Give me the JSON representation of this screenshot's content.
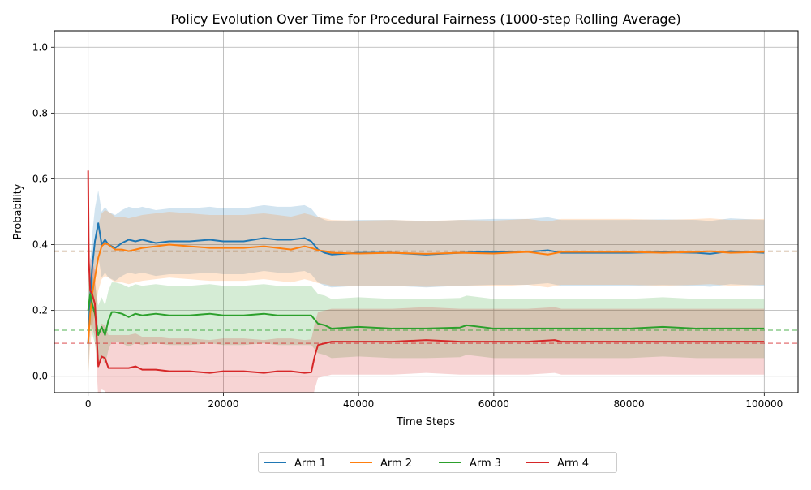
{
  "chart_data": {
    "type": "line",
    "title": "Policy Evolution Over Time for Procedural Fairness (1000-step Rolling Average)",
    "xlabel": "Time Steps",
    "ylabel": "Probability",
    "xlim": [
      -5000,
      105000
    ],
    "ylim": [
      -0.05,
      1.05
    ],
    "x_ticks": [
      0,
      20000,
      40000,
      60000,
      80000,
      100000
    ],
    "x_tick_labels": [
      "0",
      "20000",
      "40000",
      "60000",
      "80000",
      "100000"
    ],
    "y_ticks": [
      0.0,
      0.2,
      0.4,
      0.6,
      0.8,
      1.0
    ],
    "y_tick_labels": [
      "0.0",
      "0.2",
      "0.4",
      "0.6",
      "0.8",
      "1.0"
    ],
    "grid": true,
    "legend_position": "bottom-center",
    "series": [
      {
        "name": "Arm 1",
        "color": "#1f77b4",
        "target": 0.38,
        "band_width": 0.1,
        "x": [
          0,
          300,
          600,
          1000,
          1500,
          2000,
          2500,
          3000,
          4000,
          5000,
          6000,
          7000,
          8000,
          10000,
          12000,
          15000,
          18000,
          20000,
          23000,
          26000,
          28000,
          30000,
          32000,
          33000,
          34000,
          35000,
          36000,
          40000,
          45000,
          50000,
          55000,
          60000,
          65000,
          68000,
          70000,
          75000,
          80000,
          85000,
          90000,
          92000,
          95000,
          100000
        ],
        "values": [
          0.1,
          0.24,
          0.33,
          0.41,
          0.465,
          0.4,
          0.415,
          0.4,
          0.39,
          0.405,
          0.415,
          0.41,
          0.415,
          0.405,
          0.41,
          0.41,
          0.415,
          0.41,
          0.41,
          0.42,
          0.415,
          0.415,
          0.42,
          0.41,
          0.385,
          0.375,
          0.37,
          0.375,
          0.375,
          0.37,
          0.375,
          0.378,
          0.378,
          0.383,
          0.375,
          0.375,
          0.375,
          0.377,
          0.375,
          0.372,
          0.38,
          0.375
        ]
      },
      {
        "name": "Arm 2",
        "color": "#ff7f0e",
        "target": 0.38,
        "band_width": 0.1,
        "x": [
          0,
          300,
          600,
          1000,
          1500,
          2000,
          2500,
          3000,
          4000,
          5000,
          6000,
          7000,
          8000,
          10000,
          12000,
          15000,
          18000,
          20000,
          23000,
          26000,
          28000,
          30000,
          32000,
          33000,
          34000,
          35000,
          36000,
          40000,
          45000,
          50000,
          55000,
          60000,
          65000,
          68000,
          70000,
          75000,
          80000,
          85000,
          90000,
          92000,
          95000,
          100000
        ],
        "values": [
          0.1,
          0.19,
          0.25,
          0.3,
          0.36,
          0.395,
          0.405,
          0.4,
          0.385,
          0.385,
          0.38,
          0.385,
          0.39,
          0.395,
          0.4,
          0.395,
          0.39,
          0.39,
          0.39,
          0.395,
          0.39,
          0.385,
          0.395,
          0.39,
          0.383,
          0.38,
          0.375,
          0.373,
          0.375,
          0.372,
          0.375,
          0.373,
          0.378,
          0.37,
          0.378,
          0.378,
          0.378,
          0.375,
          0.378,
          0.38,
          0.375,
          0.378
        ]
      },
      {
        "name": "Arm 3",
        "color": "#2ca02c",
        "target": 0.14,
        "band_width": 0.09,
        "x": [
          0,
          300,
          600,
          1000,
          1500,
          2000,
          2500,
          3000,
          3500,
          4000,
          5000,
          6000,
          7000,
          8000,
          10000,
          12000,
          15000,
          18000,
          20000,
          23000,
          26000,
          28000,
          30000,
          32000,
          33000,
          34000,
          35000,
          36000,
          40000,
          45000,
          50000,
          55000,
          56000,
          60000,
          65000,
          70000,
          75000,
          80000,
          85000,
          90000,
          95000,
          100000
        ],
        "values": [
          0.2,
          0.25,
          0.22,
          0.19,
          0.125,
          0.15,
          0.125,
          0.17,
          0.195,
          0.195,
          0.19,
          0.18,
          0.19,
          0.185,
          0.19,
          0.185,
          0.185,
          0.19,
          0.185,
          0.185,
          0.19,
          0.185,
          0.185,
          0.185,
          0.185,
          0.16,
          0.155,
          0.145,
          0.15,
          0.145,
          0.145,
          0.148,
          0.155,
          0.145,
          0.145,
          0.145,
          0.145,
          0.145,
          0.15,
          0.145,
          0.145,
          0.145
        ]
      },
      {
        "name": "Arm 4",
        "color": "#d62728",
        "target": 0.1,
        "band_width": 0.1,
        "x": [
          0,
          100,
          300,
          600,
          1000,
          1500,
          2000,
          2500,
          3000,
          3500,
          5000,
          6000,
          7000,
          8000,
          10000,
          12000,
          15000,
          18000,
          20000,
          23000,
          26000,
          28000,
          30000,
          32000,
          33000,
          33500,
          34000,
          35000,
          36000,
          40000,
          45000,
          50000,
          55000,
          60000,
          65000,
          69000,
          70000,
          75000,
          80000,
          85000,
          90000,
          95000,
          100000
        ],
        "values": [
          0.625,
          0.35,
          0.26,
          0.25,
          0.22,
          0.03,
          0.06,
          0.055,
          0.025,
          0.025,
          0.025,
          0.025,
          0.03,
          0.02,
          0.02,
          0.015,
          0.015,
          0.01,
          0.015,
          0.015,
          0.01,
          0.015,
          0.015,
          0.01,
          0.012,
          0.06,
          0.095,
          0.1,
          0.105,
          0.105,
          0.105,
          0.11,
          0.105,
          0.105,
          0.105,
          0.11,
          0.105,
          0.105,
          0.105,
          0.105,
          0.105,
          0.105,
          0.105
        ]
      }
    ]
  }
}
